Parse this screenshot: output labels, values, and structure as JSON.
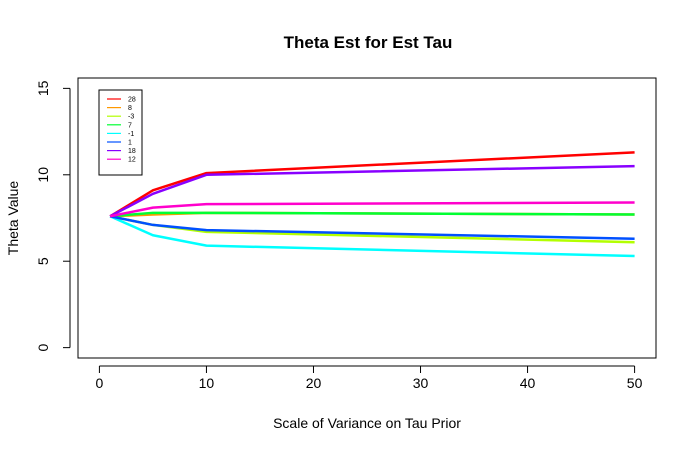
{
  "chart_data": {
    "type": "line",
    "title": "Theta Est for Est Tau",
    "xlabel": "Scale of Variance on Tau Prior",
    "ylabel": "Theta Value",
    "xlim": [
      -2,
      52
    ],
    "ylim": [
      -0.6,
      15.6
    ],
    "x_ticks": [
      0,
      10,
      20,
      30,
      40,
      50
    ],
    "y_ticks": [
      0,
      5,
      10,
      15
    ],
    "legend_position": "top-left",
    "x": [
      1,
      5,
      10,
      50
    ],
    "series": [
      {
        "name": "28",
        "color": "#ff0000",
        "values": [
          7.6,
          9.1,
          10.1,
          11.3
        ]
      },
      {
        "name": "8",
        "color": "#ff9900",
        "values": [
          7.6,
          7.7,
          7.8,
          7.7
        ]
      },
      {
        "name": "-3",
        "color": "#b3ff00",
        "values": [
          7.6,
          7.1,
          6.7,
          6.1
        ]
      },
      {
        "name": "7",
        "color": "#00ff33",
        "values": [
          7.6,
          7.8,
          7.8,
          7.7
        ]
      },
      {
        "name": "-1",
        "color": "#00ffff",
        "values": [
          7.6,
          6.5,
          5.9,
          5.3
        ]
      },
      {
        "name": "1",
        "color": "#0050ff",
        "values": [
          7.6,
          7.1,
          6.8,
          6.3
        ]
      },
      {
        "name": "18",
        "color": "#8800ff",
        "values": [
          7.6,
          8.9,
          10.0,
          10.5
        ]
      },
      {
        "name": "12",
        "color": "#ff00cc",
        "values": [
          7.6,
          8.1,
          8.3,
          8.4
        ]
      }
    ]
  }
}
